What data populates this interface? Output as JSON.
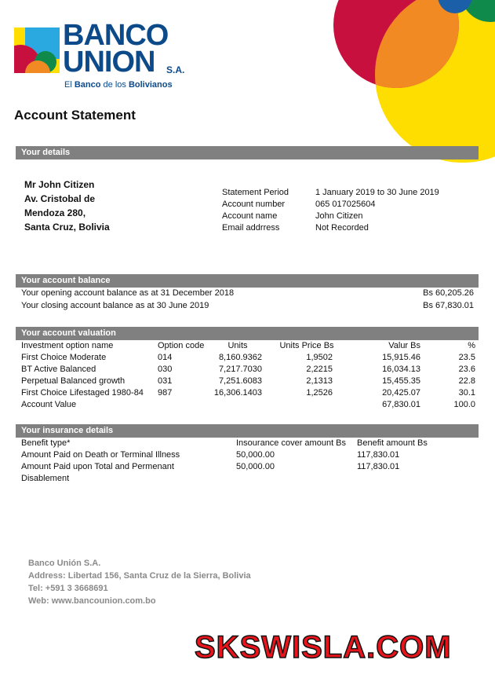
{
  "logo": {
    "line1": "BANCO",
    "line2": "UNION",
    "suffix": "S.A.",
    "tagline_pre": "El ",
    "tagline_b1": "Banco",
    "tagline_mid": " de los ",
    "tagline_b2": "Bolivianos"
  },
  "title": "Account Statement",
  "details": {
    "header": "Your details",
    "address": [
      "Mr John Citizen",
      "Av. Cristobal de",
      "Mendoza 280,",
      "Santa Cruz, Bolivia"
    ],
    "fields": [
      {
        "label": "Statement Period",
        "value": "1 January 2019 to 30 June 2019"
      },
      {
        "label": "Account number",
        "value": "065 017025604"
      },
      {
        "label": "Account name",
        "value": "John Citizen"
      },
      {
        "label": "Email addrress",
        "value": "Not Recorded"
      }
    ]
  },
  "balance": {
    "header": "Your account balance",
    "rows": [
      {
        "label": "Your opening account balance as at 31 December 2018",
        "value": "Bs 60,205.26"
      },
      {
        "label": "Your closing account balance as at 30 June 2019",
        "value": "Bs 67,830.01"
      }
    ]
  },
  "valuation": {
    "header": "Your account valuation",
    "columns": [
      "Investment option name",
      "Option code",
      "Units",
      "Units Price Bs",
      "Valur Bs",
      "%"
    ],
    "rows": [
      [
        "First Choice Moderate",
        "014",
        "8,160.9362",
        "1,9502",
        "15,915.46",
        "23.5"
      ],
      [
        "BT Active Balanced",
        "030",
        "7,217.7030",
        "2,2215",
        "16,034.13",
        "23.6"
      ],
      [
        "Perpetual Balanced growth",
        "031",
        "7,251.6083",
        "2,1313",
        "15,455.35",
        "22.8"
      ],
      [
        "First Choice Lifestaged 1980-84",
        "987",
        "16,306.1403",
        "1,2526",
        "20,425.07",
        "30.1"
      ],
      [
        "Account Value",
        "",
        "",
        "",
        "67,830.01",
        "100.0"
      ]
    ]
  },
  "insurance": {
    "header": "Your insurance details",
    "columns": [
      "Benefit type*",
      "Insourance cover amount Bs",
      "Benefit amount Bs"
    ],
    "rows": [
      [
        "Amount Paid on Death or Terminal Illness",
        "50,000.00",
        "117,830.01"
      ],
      [
        "Amount Paid upon Total and Permenant",
        "50,000.00",
        "117,830.01"
      ],
      [
        "Disablement",
        "",
        ""
      ]
    ]
  },
  "footer": [
    "Banco Unión S.A.",
    "Address: Libertad 156, Santa Cruz de la Sierra, Bolivia",
    "Tel: +591 3 3668691",
    "Web: www.bancounion.com.bo"
  ],
  "watermark": "SKSWISLA.COM",
  "colors": {
    "bar": "#808080",
    "brand_blue": "#0d4a8a",
    "red": "#c8103e",
    "yellow": "#fedd00",
    "orange": "#f28a24",
    "green": "#0f8a4a"
  }
}
